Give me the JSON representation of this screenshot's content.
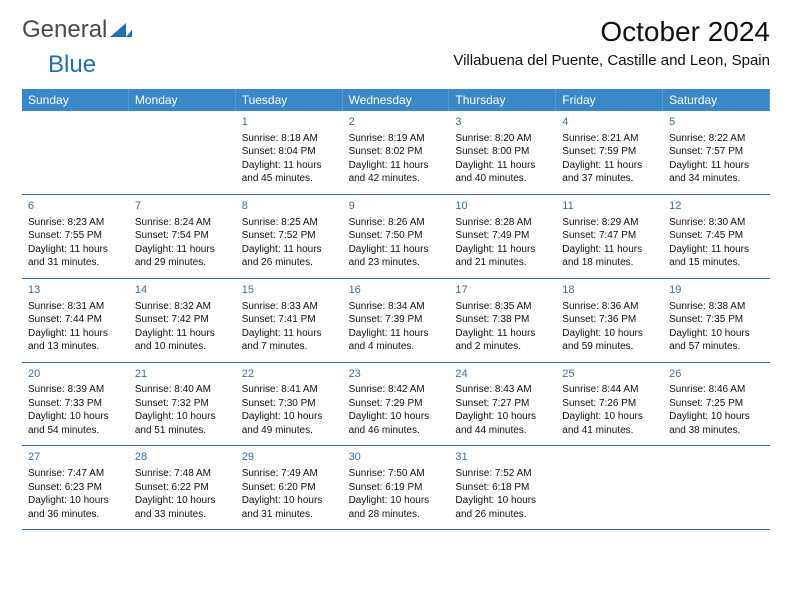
{
  "brand": {
    "part1": "General",
    "part2": "Blue"
  },
  "header": {
    "month_title": "October 2024",
    "location": "Villabuena del Puente, Castille and Leon, Spain"
  },
  "colors": {
    "header_bar": "#3b88c8",
    "header_text": "#ffffff",
    "daynum": "#3a6fa0",
    "rule": "#3b6fa0",
    "logo_gray": "#4a4a4a",
    "logo_blue": "#1f6fb2"
  },
  "dow": [
    "Sunday",
    "Monday",
    "Tuesday",
    "Wednesday",
    "Thursday",
    "Friday",
    "Saturday"
  ],
  "weeks": [
    [
      null,
      null,
      {
        "n": "1",
        "sr": "Sunrise: 8:18 AM",
        "ss": "Sunset: 8:04 PM",
        "dl": "Daylight: 11 hours and 45 minutes."
      },
      {
        "n": "2",
        "sr": "Sunrise: 8:19 AM",
        "ss": "Sunset: 8:02 PM",
        "dl": "Daylight: 11 hours and 42 minutes."
      },
      {
        "n": "3",
        "sr": "Sunrise: 8:20 AM",
        "ss": "Sunset: 8:00 PM",
        "dl": "Daylight: 11 hours and 40 minutes."
      },
      {
        "n": "4",
        "sr": "Sunrise: 8:21 AM",
        "ss": "Sunset: 7:59 PM",
        "dl": "Daylight: 11 hours and 37 minutes."
      },
      {
        "n": "5",
        "sr": "Sunrise: 8:22 AM",
        "ss": "Sunset: 7:57 PM",
        "dl": "Daylight: 11 hours and 34 minutes."
      }
    ],
    [
      {
        "n": "6",
        "sr": "Sunrise: 8:23 AM",
        "ss": "Sunset: 7:55 PM",
        "dl": "Daylight: 11 hours and 31 minutes."
      },
      {
        "n": "7",
        "sr": "Sunrise: 8:24 AM",
        "ss": "Sunset: 7:54 PM",
        "dl": "Daylight: 11 hours and 29 minutes."
      },
      {
        "n": "8",
        "sr": "Sunrise: 8:25 AM",
        "ss": "Sunset: 7:52 PM",
        "dl": "Daylight: 11 hours and 26 minutes."
      },
      {
        "n": "9",
        "sr": "Sunrise: 8:26 AM",
        "ss": "Sunset: 7:50 PM",
        "dl": "Daylight: 11 hours and 23 minutes."
      },
      {
        "n": "10",
        "sr": "Sunrise: 8:28 AM",
        "ss": "Sunset: 7:49 PM",
        "dl": "Daylight: 11 hours and 21 minutes."
      },
      {
        "n": "11",
        "sr": "Sunrise: 8:29 AM",
        "ss": "Sunset: 7:47 PM",
        "dl": "Daylight: 11 hours and 18 minutes."
      },
      {
        "n": "12",
        "sr": "Sunrise: 8:30 AM",
        "ss": "Sunset: 7:45 PM",
        "dl": "Daylight: 11 hours and 15 minutes."
      }
    ],
    [
      {
        "n": "13",
        "sr": "Sunrise: 8:31 AM",
        "ss": "Sunset: 7:44 PM",
        "dl": "Daylight: 11 hours and 13 minutes."
      },
      {
        "n": "14",
        "sr": "Sunrise: 8:32 AM",
        "ss": "Sunset: 7:42 PM",
        "dl": "Daylight: 11 hours and 10 minutes."
      },
      {
        "n": "15",
        "sr": "Sunrise: 8:33 AM",
        "ss": "Sunset: 7:41 PM",
        "dl": "Daylight: 11 hours and 7 minutes."
      },
      {
        "n": "16",
        "sr": "Sunrise: 8:34 AM",
        "ss": "Sunset: 7:39 PM",
        "dl": "Daylight: 11 hours and 4 minutes."
      },
      {
        "n": "17",
        "sr": "Sunrise: 8:35 AM",
        "ss": "Sunset: 7:38 PM",
        "dl": "Daylight: 11 hours and 2 minutes."
      },
      {
        "n": "18",
        "sr": "Sunrise: 8:36 AM",
        "ss": "Sunset: 7:36 PM",
        "dl": "Daylight: 10 hours and 59 minutes."
      },
      {
        "n": "19",
        "sr": "Sunrise: 8:38 AM",
        "ss": "Sunset: 7:35 PM",
        "dl": "Daylight: 10 hours and 57 minutes."
      }
    ],
    [
      {
        "n": "20",
        "sr": "Sunrise: 8:39 AM",
        "ss": "Sunset: 7:33 PM",
        "dl": "Daylight: 10 hours and 54 minutes."
      },
      {
        "n": "21",
        "sr": "Sunrise: 8:40 AM",
        "ss": "Sunset: 7:32 PM",
        "dl": "Daylight: 10 hours and 51 minutes."
      },
      {
        "n": "22",
        "sr": "Sunrise: 8:41 AM",
        "ss": "Sunset: 7:30 PM",
        "dl": "Daylight: 10 hours and 49 minutes."
      },
      {
        "n": "23",
        "sr": "Sunrise: 8:42 AM",
        "ss": "Sunset: 7:29 PM",
        "dl": "Daylight: 10 hours and 46 minutes."
      },
      {
        "n": "24",
        "sr": "Sunrise: 8:43 AM",
        "ss": "Sunset: 7:27 PM",
        "dl": "Daylight: 10 hours and 44 minutes."
      },
      {
        "n": "25",
        "sr": "Sunrise: 8:44 AM",
        "ss": "Sunset: 7:26 PM",
        "dl": "Daylight: 10 hours and 41 minutes."
      },
      {
        "n": "26",
        "sr": "Sunrise: 8:46 AM",
        "ss": "Sunset: 7:25 PM",
        "dl": "Daylight: 10 hours and 38 minutes."
      }
    ],
    [
      {
        "n": "27",
        "sr": "Sunrise: 7:47 AM",
        "ss": "Sunset: 6:23 PM",
        "dl": "Daylight: 10 hours and 36 minutes."
      },
      {
        "n": "28",
        "sr": "Sunrise: 7:48 AM",
        "ss": "Sunset: 6:22 PM",
        "dl": "Daylight: 10 hours and 33 minutes."
      },
      {
        "n": "29",
        "sr": "Sunrise: 7:49 AM",
        "ss": "Sunset: 6:20 PM",
        "dl": "Daylight: 10 hours and 31 minutes."
      },
      {
        "n": "30",
        "sr": "Sunrise: 7:50 AM",
        "ss": "Sunset: 6:19 PM",
        "dl": "Daylight: 10 hours and 28 minutes."
      },
      {
        "n": "31",
        "sr": "Sunrise: 7:52 AM",
        "ss": "Sunset: 6:18 PM",
        "dl": "Daylight: 10 hours and 26 minutes."
      },
      null,
      null
    ]
  ]
}
